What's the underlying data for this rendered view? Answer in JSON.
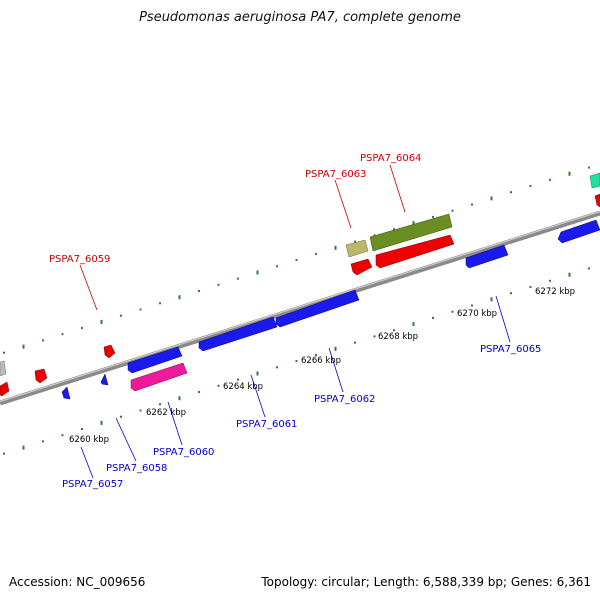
{
  "title": "Pseudomonas aeruginosa PA7, complete genome",
  "footer": {
    "accession": "Accession: NC_009656",
    "topology": "Topology: circular; Length: 6,588,339 bp; Genes: 6,361"
  },
  "colors": {
    "forward_label": "#cc0000",
    "reverse_label": "#0000cc",
    "backbone": "#808080",
    "tick_mark": "#2e7d32"
  },
  "scale_ticks": [
    {
      "label": "6260 kbp"
    },
    {
      "label": "6262 kbp"
    },
    {
      "label": "6264 kbp"
    },
    {
      "label": "6266 kbp"
    },
    {
      "label": "6268 kbp"
    },
    {
      "label": "6270 kbp"
    },
    {
      "label": "6272 kbp"
    }
  ],
  "forward_genes": [
    {
      "label": "PSPA7_6059"
    },
    {
      "label": "PSPA7_6063"
    },
    {
      "label": "PSPA7_6064"
    }
  ],
  "reverse_genes": [
    {
      "label": "PSPA7_6057"
    },
    {
      "label": "PSPA7_6058"
    },
    {
      "label": "PSPA7_6060"
    },
    {
      "label": "PSPA7_6061"
    },
    {
      "label": "PSPA7_6062"
    },
    {
      "label": "PSPA7_6065"
    }
  ]
}
